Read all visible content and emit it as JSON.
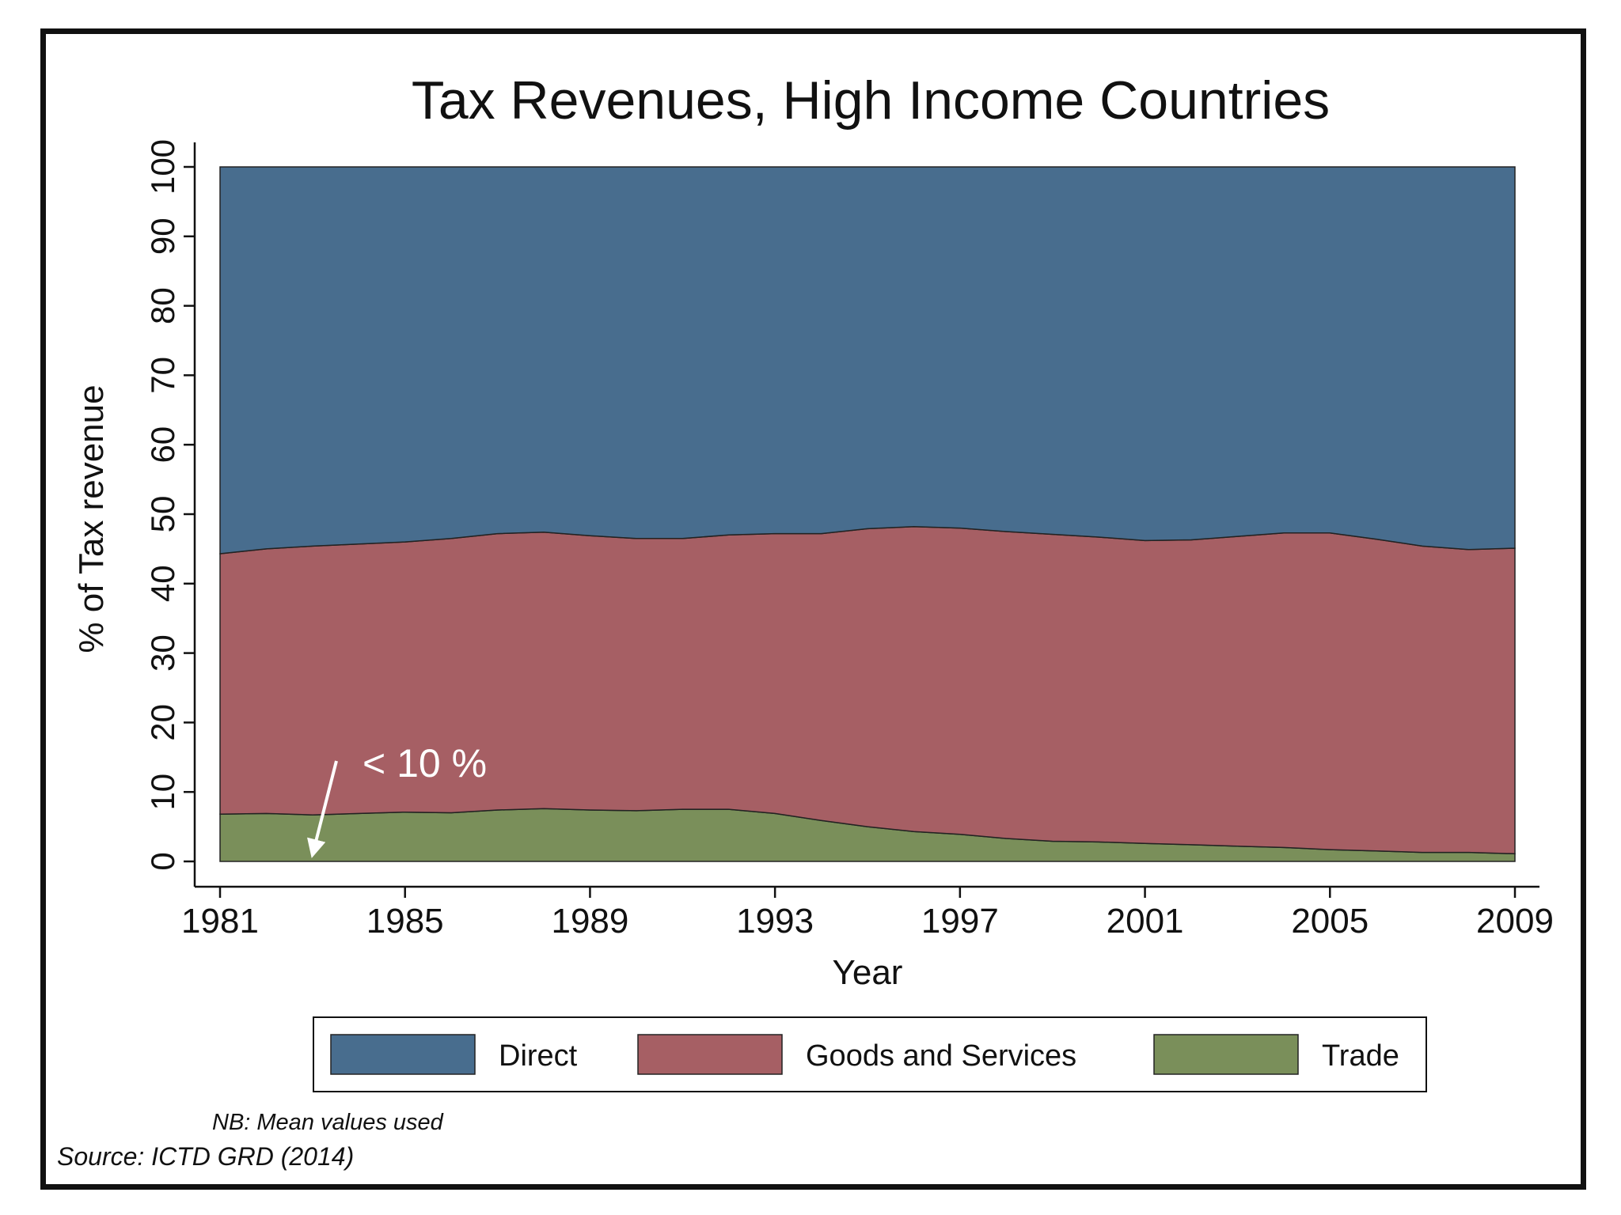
{
  "chart_data": {
    "type": "area",
    "stacked": true,
    "title": "Tax Revenues, High Income Countries",
    "xlabel": "Year",
    "ylabel": "% of Tax revenue",
    "xlim": [
      1981,
      2009
    ],
    "ylim": [
      0,
      100
    ],
    "x_ticks": [
      1981,
      1985,
      1989,
      1993,
      1997,
      2001,
      2005,
      2009
    ],
    "y_ticks": [
      0,
      10,
      20,
      30,
      40,
      50,
      60,
      70,
      80,
      90,
      100
    ],
    "x": [
      1981,
      1982,
      1983,
      1984,
      1985,
      1986,
      1987,
      1988,
      1989,
      1990,
      1991,
      1992,
      1993,
      1994,
      1995,
      1996,
      1997,
      1998,
      1999,
      2000,
      2001,
      2002,
      2003,
      2004,
      2005,
      2006,
      2007,
      2008,
      2009
    ],
    "series": [
      {
        "name": "Trade",
        "color": "#7a8f5a",
        "values": [
          6.8,
          6.9,
          6.7,
          6.9,
          7.1,
          7.0,
          7.4,
          7.6,
          7.4,
          7.3,
          7.5,
          7.5,
          6.9,
          5.9,
          5.0,
          4.3,
          3.9,
          3.3,
          2.9,
          2.8,
          2.6,
          2.4,
          2.2,
          2.0,
          1.7,
          1.5,
          1.3,
          1.3,
          1.1
        ]
      },
      {
        "name": "Goods and Services",
        "color": "#a65f64",
        "values": [
          37.5,
          38.1,
          38.7,
          38.8,
          38.9,
          39.5,
          39.8,
          39.8,
          39.5,
          39.2,
          39.0,
          39.5,
          40.3,
          41.3,
          42.9,
          43.9,
          44.1,
          44.2,
          44.2,
          43.9,
          43.6,
          43.9,
          44.6,
          45.3,
          45.6,
          44.9,
          44.1,
          43.6,
          44.0
        ]
      },
      {
        "name": "Direct",
        "color": "#486d8e",
        "values": [
          55.7,
          55.0,
          54.6,
          54.3,
          54.0,
          53.5,
          52.8,
          52.6,
          53.1,
          53.5,
          53.5,
          53.0,
          52.8,
          52.8,
          52.1,
          51.8,
          52.0,
          52.5,
          52.9,
          53.3,
          53.8,
          53.7,
          53.2,
          52.7,
          52.7,
          53.6,
          54.6,
          55.1,
          54.9
        ]
      }
    ],
    "legend": {
      "placement": "bottom",
      "entries": [
        "Direct",
        "Goods and Services",
        "Trade"
      ]
    },
    "annotation": {
      "text": "< 10 %",
      "arrow_target_year": 1983,
      "arrow_target_value": 1
    },
    "grid": false
  },
  "notes": {
    "nb": "NB: Mean values used",
    "source": "Source: ICTD GRD (2014)"
  }
}
